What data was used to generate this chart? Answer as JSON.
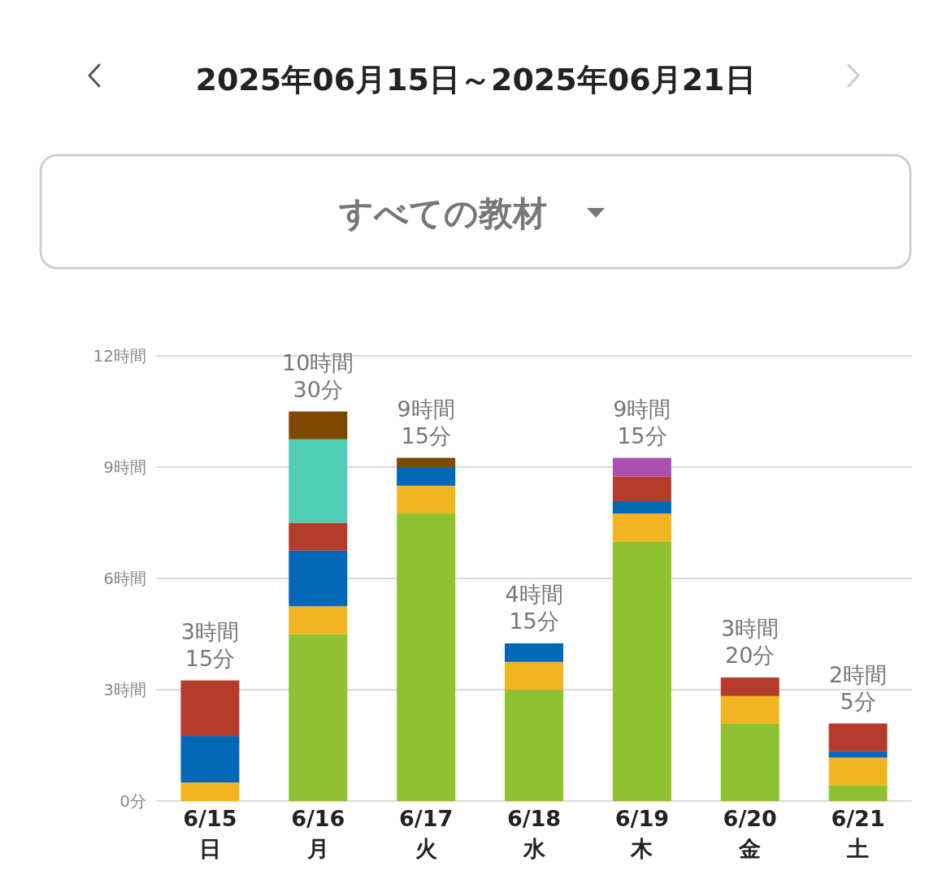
{
  "chart_data": {
    "type": "bar",
    "title": "2025年06月15日～2025年06月21日",
    "subtitle": "すべての教材",
    "categories": [
      "6/15\n日",
      "6/16\n月",
      "6/17\n火",
      "6/18\n水",
      "6/19\n木",
      "6/20\n金",
      "6/21\n土"
    ],
    "stacked": true,
    "series": [
      {
        "color": "#8fc231",
        "values": [
          0,
          4.5,
          7.75,
          3,
          7,
          2.08,
          0.42
        ]
      },
      {
        "color": "#f2b51f",
        "values": [
          0.5,
          0.75,
          0.75,
          0.75,
          0.75,
          0.75,
          0.75
        ]
      },
      {
        "color": "#0068b7",
        "values": [
          1.25,
          1.5,
          0.5,
          0.5,
          0.33,
          0,
          0.17
        ]
      },
      {
        "color": "#b53b2b",
        "values": [
          1.5,
          0.75,
          0,
          0,
          0.67,
          0.5,
          0.75
        ]
      },
      {
        "color": "#4ecdb4",
        "values": [
          0,
          2.25,
          0,
          0,
          0,
          0,
          0
        ]
      },
      {
        "color": "#7f4a00",
        "values": [
          0,
          0.75,
          0.25,
          0,
          0,
          0,
          0
        ]
      },
      {
        "color": "#aa50b0",
        "values": [
          0,
          0,
          0,
          0,
          0.5,
          0,
          0
        ]
      }
    ],
    "totals": [
      "3時間\n15分",
      "10時間\n30分",
      "9時間\n15分",
      "4時間\n15分",
      "9時間\n15分",
      "3時間\n20分",
      "2時間\n5分"
    ],
    "ylim": [
      0,
      12
    ],
    "yticks": [
      {
        "value": 0,
        "label": "0分"
      },
      {
        "value": 3,
        "label": "3時間"
      },
      {
        "value": 6,
        "label": "6時間"
      },
      {
        "value": 9,
        "label": "9時間"
      },
      {
        "value": 12,
        "label": "12時間"
      }
    ],
    "grid": "y"
  }
}
